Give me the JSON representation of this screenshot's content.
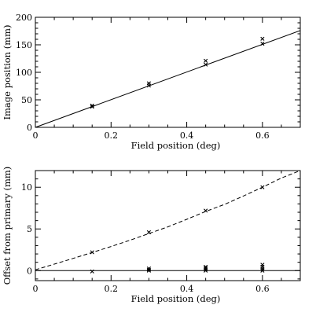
{
  "chart_data": [
    {
      "type": "scatter",
      "xlabel": "Field position (deg)",
      "ylabel": "Image position (mm)",
      "xlim": [
        0,
        0.7
      ],
      "ylim": [
        0,
        200
      ],
      "xticks": [
        0,
        0.2,
        0.4,
        0.6
      ],
      "yticks": [
        0,
        50,
        100,
        150,
        200
      ],
      "grid": false,
      "points": [
        {
          "x": 0.15,
          "y": 37.5
        },
        {
          "x": 0.15,
          "y": 39.5
        },
        {
          "x": 0.3,
          "y": 76.0
        },
        {
          "x": 0.3,
          "y": 80.0
        },
        {
          "x": 0.45,
          "y": 114.0
        },
        {
          "x": 0.45,
          "y": 121.0
        },
        {
          "x": 0.6,
          "y": 152.0
        },
        {
          "x": 0.6,
          "y": 161.0
        }
      ],
      "line": {
        "style": "solid",
        "x": [
          0,
          0.7
        ],
        "y": [
          0,
          176
        ]
      }
    },
    {
      "type": "scatter",
      "xlabel": "Field position (deg)",
      "ylabel": "Offset from primary (mm)",
      "xlim": [
        0,
        0.7
      ],
      "ylim": [
        -1.2,
        12
      ],
      "xticks": [
        0,
        0.2,
        0.4,
        0.6
      ],
      "yticks": [
        0,
        5,
        10
      ],
      "grid": false,
      "points": [
        {
          "x": 0.15,
          "y": 2.2
        },
        {
          "x": 0.15,
          "y": -0.1
        },
        {
          "x": 0.3,
          "y": 4.6
        },
        {
          "x": 0.3,
          "y": 0.0
        },
        {
          "x": 0.3,
          "y": 0.1
        },
        {
          "x": 0.3,
          "y": 0.25
        },
        {
          "x": 0.45,
          "y": 7.2
        },
        {
          "x": 0.45,
          "y": 0.0
        },
        {
          "x": 0.45,
          "y": 0.15
        },
        {
          "x": 0.45,
          "y": 0.3
        },
        {
          "x": 0.45,
          "y": 0.45
        },
        {
          "x": 0.6,
          "y": 10.0
        },
        {
          "x": 0.6,
          "y": 0.0
        },
        {
          "x": 0.6,
          "y": 0.2
        },
        {
          "x": 0.6,
          "y": 0.45
        },
        {
          "x": 0.6,
          "y": 0.7
        }
      ],
      "curve": {
        "style": "dashed",
        "x": [
          0,
          0.05,
          0.1,
          0.15,
          0.2,
          0.25,
          0.3,
          0.35,
          0.4,
          0.45,
          0.5,
          0.55,
          0.6,
          0.65,
          0.7
        ],
        "y": [
          0.1,
          0.78,
          1.47,
          2.18,
          2.89,
          3.65,
          4.45,
          5.25,
          6.15,
          7.1,
          7.95,
          8.95,
          10.0,
          11.1,
          12.0
        ]
      },
      "hline": {
        "style": "solid",
        "y": 0
      }
    }
  ]
}
